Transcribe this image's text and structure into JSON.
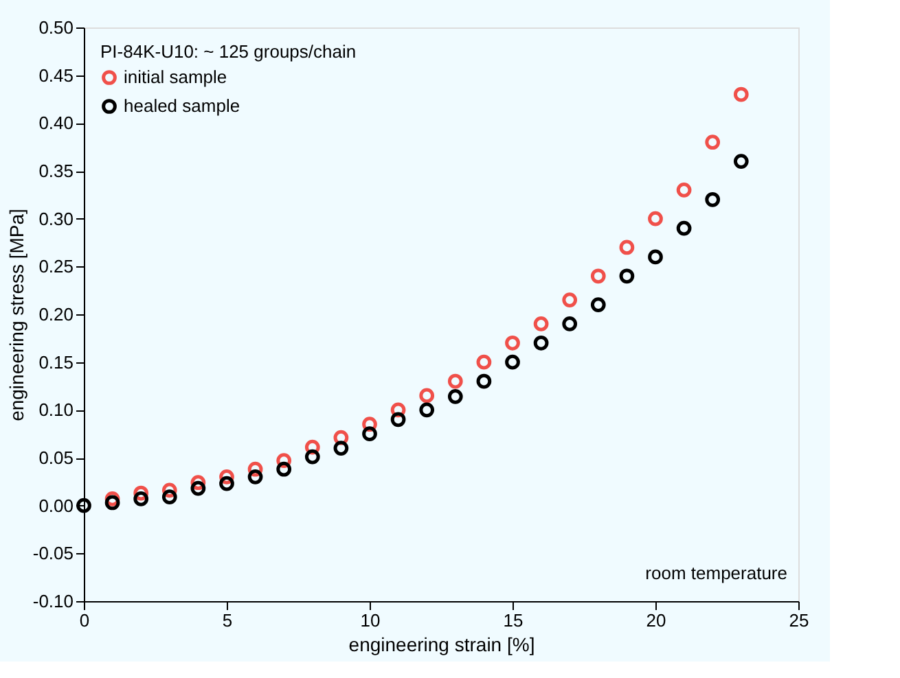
{
  "chart_data": {
    "type": "scatter",
    "xlabel": "engineering strain [%]",
    "ylabel": "engineering stress [MPa]",
    "legend_title": "PI-84K-U10: ~ 125 groups/chain",
    "legend": "top left",
    "marker": "circle",
    "grid": false,
    "xlim": [
      0,
      25
    ],
    "xticks": [
      0,
      5,
      10,
      15,
      20,
      25
    ],
    "ylim": [
      -0.1,
      0.5
    ],
    "yticks": [
      {
        "value": -0.1,
        "label": "-0.10"
      },
      {
        "value": -0.05,
        "label": "-0.05"
      },
      {
        "value": 0,
        "label": "0.00"
      },
      {
        "value": 0.05,
        "label": "0.05"
      },
      {
        "value": 0.1,
        "label": "0.10"
      },
      {
        "value": 0.15,
        "label": "0.15"
      },
      {
        "value": 0.2,
        "label": "0.20"
      },
      {
        "value": 0.25,
        "label": "0.25"
      },
      {
        "value": 0.3,
        "label": "0.30"
      },
      {
        "value": 0.35,
        "label": "0.35"
      },
      {
        "value": 0.4,
        "label": "0.40"
      },
      {
        "value": 0.45,
        "label": "0.45"
      },
      {
        "value": 0.5,
        "label": "0.50"
      }
    ],
    "series": [
      {
        "name": "initial sample",
        "color": "#f0504a",
        "x": [
          1,
          2,
          3,
          4,
          5,
          6,
          7,
          8,
          9,
          10,
          11,
          12,
          13,
          14,
          15,
          16,
          17,
          18,
          19,
          20,
          21,
          22,
          23
        ],
        "values": [
          0.007,
          0.013,
          0.016,
          0.024,
          0.03,
          0.038,
          0.047,
          0.061,
          0.071,
          0.085,
          0.1,
          0.115,
          0.13,
          0.15,
          0.17,
          0.19,
          0.215,
          0.24,
          0.27,
          0.3,
          0.33,
          0.38,
          0.43
        ]
      },
      {
        "name": "healed sample",
        "color": "#000000",
        "x": [
          0,
          1,
          2,
          3,
          4,
          5,
          6,
          7,
          8,
          9,
          10,
          11,
          12,
          13,
          14,
          15,
          16,
          17,
          18,
          19,
          20,
          21,
          22,
          23
        ],
        "values": [
          0,
          0.003,
          0.007,
          0.009,
          0.018,
          0.023,
          0.03,
          0.038,
          0.051,
          0.06,
          0.075,
          0.09,
          0.1,
          0.114,
          0.13,
          0.15,
          0.17,
          0.19,
          0.21,
          0.24,
          0.26,
          0.29,
          0.32,
          0.36
        ]
      }
    ],
    "annotations": [
      {
        "text": "room temperature"
      }
    ]
  }
}
